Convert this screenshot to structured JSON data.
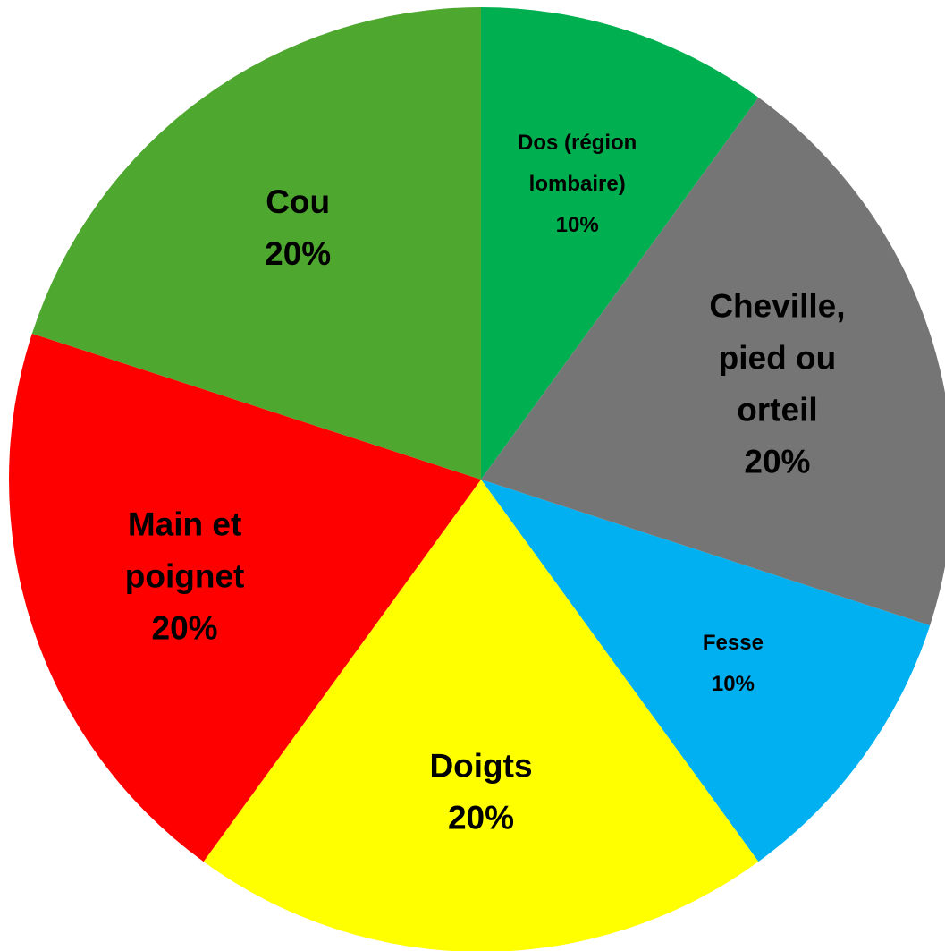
{
  "chart_data": {
    "type": "pie",
    "start": "top",
    "direction": "clockwise",
    "legend": "none",
    "slices": [
      {
        "label_lines": [
          "Dos (région",
          "lombaire)"
        ],
        "percent_label": "10%",
        "value": 10,
        "color": "#00B050",
        "label_size": "small"
      },
      {
        "label_lines": [
          "Cheville,",
          "pied ou",
          "orteil"
        ],
        "percent_label": "20%",
        "value": 20,
        "color": "#757575",
        "label_size": "large"
      },
      {
        "label_lines": [
          "Fesse"
        ],
        "percent_label": "10%",
        "value": 10,
        "color": "#00B0F0",
        "label_size": "small"
      },
      {
        "label_lines": [
          "Doigts"
        ],
        "percent_label": "20%",
        "value": 20,
        "color": "#FFFF00",
        "label_size": "large"
      },
      {
        "label_lines": [
          "Main et",
          "poignet"
        ],
        "percent_label": "20%",
        "value": 20,
        "color": "#FF0000",
        "label_size": "large"
      },
      {
        "label_lines": [
          "Cou"
        ],
        "percent_label": "20%",
        "value": 20,
        "color": "#4EA72E",
        "label_size": "large"
      }
    ]
  }
}
